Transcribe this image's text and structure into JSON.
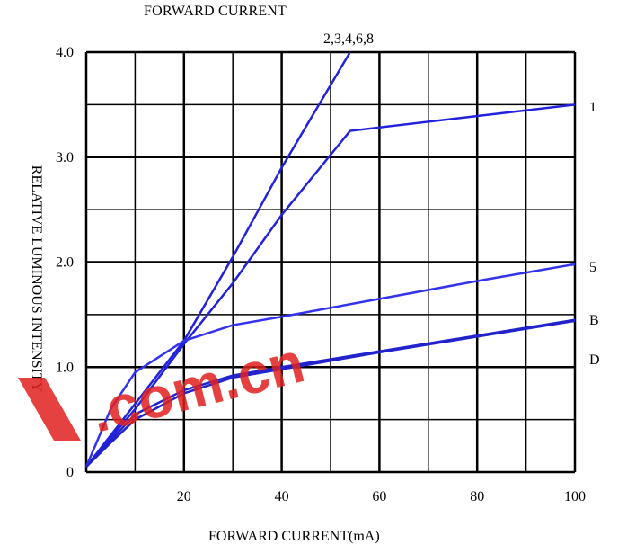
{
  "chart_data": {
    "type": "line",
    "title": "FORWARD CURRENT",
    "xlabel": "FORWARD CURRENT(mA)",
    "ylabel": "RELATIVE LUMINOUS INTENSITY",
    "xlim": [
      0,
      100
    ],
    "ylim": [
      0,
      4.0
    ],
    "grid": true,
    "x_ticks": [
      "0",
      "20",
      "40",
      "60",
      "80",
      "100"
    ],
    "y_ticks": [
      "0",
      "1.0",
      "2.0",
      "3.0",
      "4.0"
    ],
    "series": [
      {
        "name": "2,3,4,6,8",
        "x": [
          0,
          10,
          20,
          30,
          40,
          54
        ],
        "y": [
          0.05,
          0.65,
          1.25,
          2.05,
          2.9,
          4.0
        ]
      },
      {
        "name": "1",
        "x": [
          0,
          10,
          20,
          30,
          40,
          54,
          100
        ],
        "y": [
          0.05,
          0.6,
          1.22,
          1.8,
          2.45,
          3.25,
          3.5
        ]
      },
      {
        "name": "5",
        "x": [
          0,
          5,
          10,
          20,
          30,
          40,
          60,
          80,
          100
        ],
        "y": [
          0.05,
          0.6,
          0.95,
          1.25,
          1.4,
          1.48,
          1.65,
          1.82,
          1.98
        ]
      },
      {
        "name": "B",
        "x": [
          0,
          5,
          10,
          20,
          30,
          40,
          60,
          80,
          100
        ],
        "y": [
          0.05,
          0.3,
          0.55,
          0.78,
          0.92,
          1.0,
          1.15,
          1.3,
          1.45
        ]
      },
      {
        "name": "D",
        "x": [
          0,
          5,
          10,
          20,
          30,
          40,
          60,
          80,
          100
        ],
        "y": [
          0.05,
          0.28,
          0.5,
          0.75,
          0.9,
          0.98,
          1.14,
          1.29,
          1.44
        ]
      }
    ],
    "series_colors": [
      "#2222dd",
      "#2222dd",
      "#3333ee",
      "#2222cc",
      "#2222cc"
    ]
  },
  "watermark": {
    "text": ".com.cn"
  }
}
